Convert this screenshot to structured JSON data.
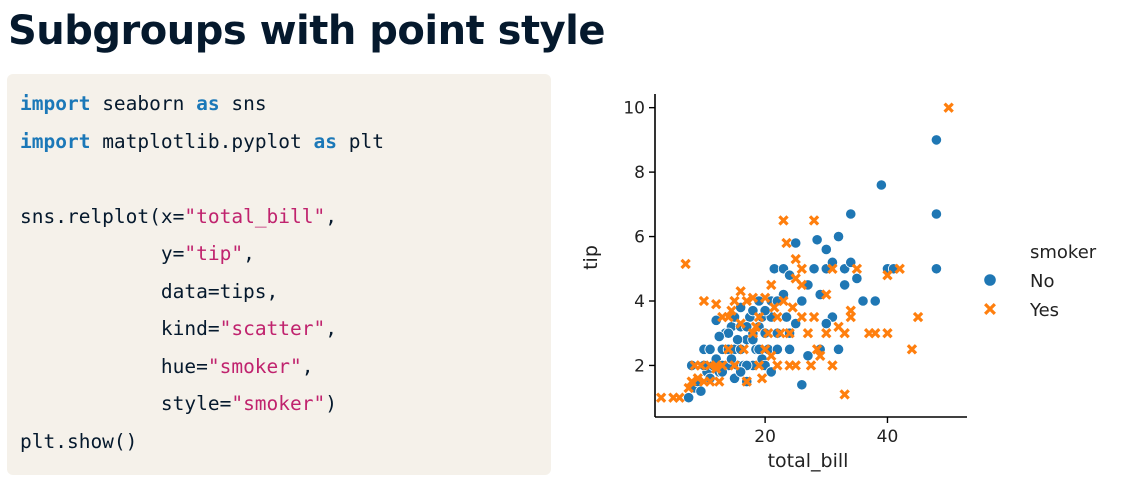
{
  "slide": {
    "title": "Subgroups with point style"
  },
  "code": {
    "lines": [
      [
        {
          "t": "import",
          "c": "kw"
        },
        {
          "t": " seaborn ",
          "c": ""
        },
        {
          "t": "as",
          "c": "kw"
        },
        {
          "t": " sns",
          "c": ""
        }
      ],
      [
        {
          "t": "import",
          "c": "kw"
        },
        {
          "t": " matplotlib.pyplot ",
          "c": ""
        },
        {
          "t": "as",
          "c": "kw"
        },
        {
          "t": " plt",
          "c": ""
        }
      ],
      [],
      [
        {
          "t": "sns.relplot(x=",
          "c": ""
        },
        {
          "t": "\"total_bill\"",
          "c": "str"
        },
        {
          "t": ",",
          "c": ""
        }
      ],
      [
        {
          "t": "            y=",
          "c": ""
        },
        {
          "t": "\"tip\"",
          "c": "str"
        },
        {
          "t": ",",
          "c": ""
        }
      ],
      [
        {
          "t": "            data=tips,",
          "c": ""
        }
      ],
      [
        {
          "t": "            kind=",
          "c": ""
        },
        {
          "t": "\"scatter\"",
          "c": "str"
        },
        {
          "t": ",",
          "c": ""
        }
      ],
      [
        {
          "t": "            hue=",
          "c": ""
        },
        {
          "t": "\"smoker\"",
          "c": "str"
        },
        {
          "t": ",",
          "c": ""
        }
      ],
      [
        {
          "t": "            style=",
          "c": ""
        },
        {
          "t": "\"smoker\"",
          "c": "str"
        },
        {
          "t": ")",
          "c": ""
        }
      ],
      [
        {
          "t": "plt.show()",
          "c": ""
        }
      ]
    ]
  },
  "chart_data": {
    "type": "scatter",
    "xlabel": "total_bill",
    "ylabel": "tip",
    "xlim": [
      2,
      53
    ],
    "ylim": [
      0.4,
      10.3
    ],
    "xticks": [
      20,
      40
    ],
    "yticks": [
      2,
      4,
      6,
      8,
      10
    ],
    "grid": false,
    "legend": {
      "title": "smoker",
      "placement": "right"
    },
    "colors": {
      "No": "#1f77b4",
      "Yes": "#ff7f0e"
    },
    "series": [
      {
        "name": "No",
        "marker": "circle",
        "points": [
          [
            8,
            2
          ],
          [
            8.5,
            1.3
          ],
          [
            9,
            1.5
          ],
          [
            10,
            2.5
          ],
          [
            10.5,
            1.8
          ],
          [
            11,
            1.6
          ],
          [
            11.5,
            2
          ],
          [
            12,
            3.4
          ],
          [
            12,
            2.2
          ],
          [
            12.5,
            1.8
          ],
          [
            13,
            2.5
          ],
          [
            13,
            2
          ],
          [
            13.5,
            3
          ],
          [
            14,
            2.5
          ],
          [
            14,
            2
          ],
          [
            14.5,
            3.2
          ],
          [
            15,
            1.6
          ],
          [
            15,
            2.5
          ],
          [
            15,
            3.5
          ],
          [
            15.5,
            2
          ],
          [
            16,
            3.2
          ],
          [
            16,
            2.5
          ],
          [
            16,
            3.8
          ],
          [
            16.5,
            2
          ],
          [
            17,
            2.8
          ],
          [
            17,
            1.5
          ],
          [
            17.5,
            3.5
          ],
          [
            18,
            2
          ],
          [
            18,
            3
          ],
          [
            18,
            3.7
          ],
          [
            18.5,
            2.5
          ],
          [
            19,
            3.2
          ],
          [
            19,
            4
          ],
          [
            19.5,
            2.2
          ],
          [
            19.5,
            3.5
          ],
          [
            20,
            2
          ],
          [
            20,
            3
          ],
          [
            20.5,
            2.5
          ],
          [
            21,
            3.5
          ],
          [
            21,
            4
          ],
          [
            21,
            1.8
          ],
          [
            21.5,
            5
          ],
          [
            22,
            3
          ],
          [
            22,
            2.5
          ],
          [
            23,
            5
          ],
          [
            23,
            4.2
          ],
          [
            23.5,
            3.5
          ],
          [
            24,
            2.5
          ],
          [
            24,
            4.8
          ],
          [
            25,
            3.3
          ],
          [
            25,
            5.8
          ],
          [
            26,
            1.4
          ],
          [
            26,
            4
          ],
          [
            27,
            4.5
          ],
          [
            28,
            5
          ],
          [
            28.5,
            5.9
          ],
          [
            29,
            2.5
          ],
          [
            29,
            4.2
          ],
          [
            30,
            5
          ],
          [
            30,
            5.6
          ],
          [
            31,
            3.5
          ],
          [
            31,
            5.2
          ],
          [
            32,
            6
          ],
          [
            32,
            2.5
          ],
          [
            33,
            5
          ],
          [
            34,
            6.7
          ],
          [
            34,
            5.2
          ],
          [
            35,
            4.7
          ],
          [
            36,
            4
          ],
          [
            38,
            4
          ],
          [
            39,
            7.6
          ],
          [
            40,
            5
          ],
          [
            41,
            5
          ],
          [
            48,
            9
          ],
          [
            48,
            6.7
          ],
          [
            48,
            5
          ],
          [
            7.5,
            1
          ],
          [
            9.5,
            1.2
          ],
          [
            10,
            2
          ],
          [
            11,
            2.5
          ],
          [
            13,
            1.8
          ],
          [
            14,
            3
          ],
          [
            17,
            2
          ],
          [
            17,
            3.2
          ],
          [
            18,
            2.8
          ],
          [
            20,
            3.7
          ],
          [
            22,
            4
          ],
          [
            24,
            3
          ],
          [
            27,
            2.3
          ],
          [
            30,
            3.3
          ],
          [
            33,
            4.5
          ],
          [
            15.5,
            2.8
          ],
          [
            12.5,
            2.9
          ],
          [
            14.5,
            2.2
          ],
          [
            16,
            1.8
          ],
          [
            19,
            2.5
          ]
        ]
      },
      {
        "name": "Yes",
        "marker": "x",
        "points": [
          [
            3,
            1
          ],
          [
            5,
            1
          ],
          [
            6,
            1
          ],
          [
            7,
            5.15
          ],
          [
            7.5,
            1.3
          ],
          [
            8,
            1.5
          ],
          [
            8.5,
            2
          ],
          [
            9,
            1.6
          ],
          [
            9.5,
            2
          ],
          [
            10,
            4
          ],
          [
            10,
            1.5
          ],
          [
            11,
            2
          ],
          [
            11,
            1.5
          ],
          [
            12,
            3.9
          ],
          [
            12,
            2
          ],
          [
            12.5,
            1.5
          ],
          [
            13,
            2
          ],
          [
            13,
            3.5
          ],
          [
            14,
            2.5
          ],
          [
            14,
            3.5
          ],
          [
            15,
            4
          ],
          [
            15,
            2
          ],
          [
            16,
            3.3
          ],
          [
            16,
            4.3
          ],
          [
            16.5,
            2.5
          ],
          [
            17,
            4
          ],
          [
            17,
            1.5
          ],
          [
            18,
            3
          ],
          [
            18,
            4.1
          ],
          [
            19,
            2
          ],
          [
            19,
            3.5
          ],
          [
            20,
            2.5
          ],
          [
            20,
            4.1
          ],
          [
            20.5,
            3
          ],
          [
            21,
            4.5
          ],
          [
            21,
            2.3
          ],
          [
            22,
            3.5
          ],
          [
            22,
            2
          ],
          [
            23,
            6.5
          ],
          [
            23,
            4
          ],
          [
            23.5,
            5.8
          ],
          [
            24,
            2
          ],
          [
            24,
            3
          ],
          [
            25,
            5.3
          ],
          [
            25,
            4.7
          ],
          [
            25,
            2
          ],
          [
            26,
            3.5
          ],
          [
            26,
            4.5
          ],
          [
            27,
            3
          ],
          [
            28,
            6.5
          ],
          [
            28,
            3.5
          ],
          [
            28.5,
            2.5
          ],
          [
            29,
            2.3
          ],
          [
            30,
            3
          ],
          [
            30,
            4.2
          ],
          [
            31,
            2
          ],
          [
            32,
            3.2
          ],
          [
            33,
            3
          ],
          [
            33,
            1.1
          ],
          [
            34,
            3.5
          ],
          [
            34,
            3.7
          ],
          [
            35,
            5
          ],
          [
            37,
            3
          ],
          [
            38,
            3
          ],
          [
            40,
            4.8
          ],
          [
            40,
            3
          ],
          [
            42,
            5
          ],
          [
            44,
            2.5
          ],
          [
            45,
            3.5
          ],
          [
            50,
            10
          ],
          [
            14.5,
            3.7
          ],
          [
            18.5,
            3.2
          ],
          [
            21.5,
            3.8
          ],
          [
            26,
            5
          ],
          [
            27.5,
            2
          ],
          [
            31,
            5
          ],
          [
            24.5,
            3.8
          ],
          [
            19.5,
            1.6
          ],
          [
            12,
            1.9
          ],
          [
            22.5,
            3
          ]
        ]
      }
    ]
  }
}
